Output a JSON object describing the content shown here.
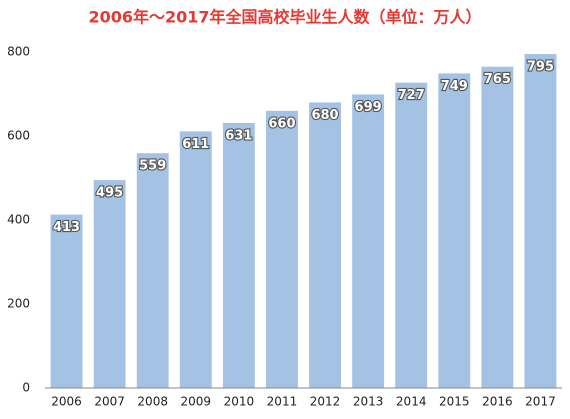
{
  "chart_data": {
    "type": "bar",
    "title": "2006年～2017年全国高校毕业生人数（单位：万人）",
    "categories": [
      "2006",
      "2007",
      "2008",
      "2009",
      "2010",
      "2011",
      "2012",
      "2013",
      "2014",
      "2015",
      "2016",
      "2017"
    ],
    "values": [
      413,
      495,
      559,
      611,
      631,
      660,
      680,
      699,
      727,
      749,
      765,
      795
    ],
    "color": "#a4c2e3",
    "ylim": [
      0,
      800
    ],
    "yticks": [
      0,
      200,
      400,
      600,
      800
    ],
    "grid": false
  }
}
